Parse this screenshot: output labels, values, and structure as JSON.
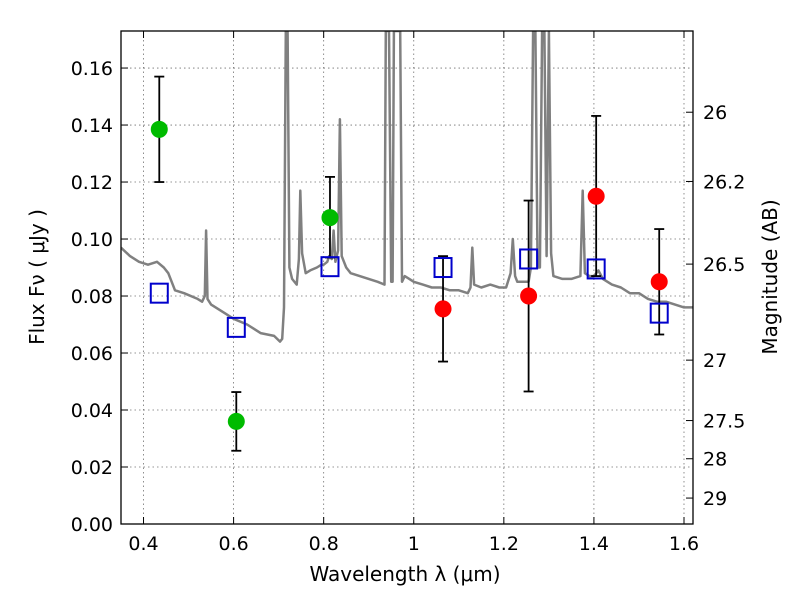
{
  "chart_data": {
    "type": "scatter",
    "xlabel": "Wavelength  λ (μm)",
    "ylabel": "Flux  Fν  ( μJy )",
    "ylabel_right": "Magnitude (AB)",
    "xlim": [
      0.35,
      1.62
    ],
    "ylim": [
      0.0,
      0.173
    ],
    "x_ticks": [
      0.4,
      0.6,
      0.8,
      1.0,
      1.2,
      1.4,
      1.6
    ],
    "x_tick_labels": [
      "0.4",
      "0.6",
      "0.8",
      "1",
      "1.2",
      "1.4",
      "1.6"
    ],
    "y_ticks": [
      0.0,
      0.02,
      0.04,
      0.06,
      0.08,
      0.1,
      0.12,
      0.14,
      0.16
    ],
    "y_tick_labels": [
      "0.00",
      "0.02",
      "0.04",
      "0.06",
      "0.08",
      "0.10",
      "0.12",
      "0.14",
      "0.16"
    ],
    "right_ticks": [
      {
        "label": "26",
        "flux": 0.1445
      },
      {
        "label": "26.2",
        "flux": 0.1202
      },
      {
        "label": "26.5",
        "flux": 0.0912
      },
      {
        "label": "27",
        "flux": 0.0575
      },
      {
        "label": "27.5",
        "flux": 0.0363
      },
      {
        "label": "28",
        "flux": 0.0229
      },
      {
        "label": "29",
        "flux": 0.0091
      }
    ],
    "grid": true,
    "series": [
      {
        "marker": "circle",
        "color": "#00bb00",
        "points": [
          {
            "x": 0.435,
            "y": 0.1385,
            "yerr_low": 0.12,
            "yerr_high": 0.157
          },
          {
            "x": 0.606,
            "y": 0.036,
            "yerr_low": 0.0257,
            "yerr_high": 0.0463
          },
          {
            "x": 0.814,
            "y": 0.1075,
            "yerr_low": 0.0935,
            "yerr_high": 0.1218
          }
        ]
      },
      {
        "marker": "circle",
        "color": "#ff0000",
        "points": [
          {
            "x": 1.065,
            "y": 0.0755,
            "yerr_low": 0.057,
            "yerr_high": 0.094
          },
          {
            "x": 1.255,
            "y": 0.08,
            "yerr_low": 0.0465,
            "yerr_high": 0.1135
          },
          {
            "x": 1.405,
            "y": 0.115,
            "yerr_low": 0.087,
            "yerr_high": 0.1432
          },
          {
            "x": 1.545,
            "y": 0.085,
            "yerr_low": 0.0665,
            "yerr_high": 0.1035
          }
        ]
      },
      {
        "marker": "square-open",
        "color": "#0000cc",
        "points": [
          {
            "x": 0.435,
            "y": 0.081
          },
          {
            "x": 0.606,
            "y": 0.069
          },
          {
            "x": 0.814,
            "y": 0.0903
          },
          {
            "x": 1.065,
            "y": 0.09
          },
          {
            "x": 1.255,
            "y": 0.093
          },
          {
            "x": 1.405,
            "y": 0.0895
          },
          {
            "x": 1.545,
            "y": 0.074
          }
        ]
      }
    ],
    "spectrum": {
      "color": "#808080",
      "points": [
        [
          0.35,
          0.097
        ],
        [
          0.37,
          0.094
        ],
        [
          0.39,
          0.092
        ],
        [
          0.41,
          0.091
        ],
        [
          0.43,
          0.092
        ],
        [
          0.445,
          0.09
        ],
        [
          0.455,
          0.088
        ],
        [
          0.47,
          0.082
        ],
        [
          0.49,
          0.081
        ],
        [
          0.52,
          0.079
        ],
        [
          0.53,
          0.078
        ],
        [
          0.536,
          0.08
        ],
        [
          0.539,
          0.103
        ],
        [
          0.542,
          0.079
        ],
        [
          0.55,
          0.077
        ],
        [
          0.58,
          0.074
        ],
        [
          0.6,
          0.072
        ],
        [
          0.63,
          0.07
        ],
        [
          0.66,
          0.067
        ],
        [
          0.69,
          0.066
        ],
        [
          0.703,
          0.064
        ],
        [
          0.708,
          0.065
        ],
        [
          0.712,
          0.076
        ],
        [
          0.716,
          0.173
        ],
        [
          0.72,
          0.173
        ],
        [
          0.724,
          0.09
        ],
        [
          0.73,
          0.086
        ],
        [
          0.74,
          0.084
        ],
        [
          0.745,
          0.093
        ],
        [
          0.748,
          0.117
        ],
        [
          0.752,
          0.095
        ],
        [
          0.76,
          0.088
        ],
        [
          0.77,
          0.089
        ],
        [
          0.785,
          0.09
        ],
        [
          0.795,
          0.091
        ],
        [
          0.8,
          0.091
        ],
        [
          0.808,
          0.092
        ],
        [
          0.812,
          0.094
        ],
        [
          0.818,
          0.093
        ],
        [
          0.822,
          0.103
        ],
        [
          0.826,
          0.092
        ],
        [
          0.832,
          0.096
        ],
        [
          0.836,
          0.142
        ],
        [
          0.84,
          0.094
        ],
        [
          0.85,
          0.09
        ],
        [
          0.86,
          0.088
        ],
        [
          0.88,
          0.087
        ],
        [
          0.9,
          0.086
        ],
        [
          0.92,
          0.085
        ],
        [
          0.935,
          0.084
        ],
        [
          0.938,
          0.173
        ],
        [
          0.945,
          0.173
        ],
        [
          0.95,
          0.085
        ],
        [
          0.953,
          0.085
        ],
        [
          0.956,
          0.173
        ],
        [
          0.962,
          0.173
        ],
        [
          0.966,
          0.173
        ],
        [
          0.97,
          0.173
        ],
        [
          0.974,
          0.085
        ],
        [
          0.98,
          0.087
        ],
        [
          0.99,
          0.086
        ],
        [
          1.0,
          0.085
        ],
        [
          1.02,
          0.084
        ],
        [
          1.04,
          0.083
        ],
        [
          1.06,
          0.083
        ],
        [
          1.08,
          0.082
        ],
        [
          1.1,
          0.082
        ],
        [
          1.12,
          0.081
        ],
        [
          1.126,
          0.083
        ],
        [
          1.13,
          0.097
        ],
        [
          1.134,
          0.084
        ],
        [
          1.15,
          0.083
        ],
        [
          1.17,
          0.084
        ],
        [
          1.19,
          0.083
        ],
        [
          1.205,
          0.083
        ],
        [
          1.215,
          0.088
        ],
        [
          1.22,
          0.1
        ],
        [
          1.225,
          0.087
        ],
        [
          1.23,
          0.085
        ],
        [
          1.24,
          0.085
        ],
        [
          1.255,
          0.085
        ],
        [
          1.26,
          0.09
        ],
        [
          1.265,
          0.173
        ],
        [
          1.27,
          0.173
        ],
        [
          1.275,
          0.09
        ],
        [
          1.28,
          0.09
        ],
        [
          1.285,
          0.173
        ],
        [
          1.29,
          0.173
        ],
        [
          1.295,
          0.094
        ],
        [
          1.3,
          0.173
        ],
        [
          1.305,
          0.095
        ],
        [
          1.31,
          0.087
        ],
        [
          1.33,
          0.086
        ],
        [
          1.35,
          0.086
        ],
        [
          1.37,
          0.087
        ],
        [
          1.375,
          0.117
        ],
        [
          1.38,
          0.088
        ],
        [
          1.39,
          0.087
        ],
        [
          1.4,
          0.087
        ],
        [
          1.41,
          0.089
        ],
        [
          1.42,
          0.086
        ],
        [
          1.44,
          0.084
        ],
        [
          1.46,
          0.083
        ],
        [
          1.48,
          0.081
        ],
        [
          1.5,
          0.081
        ],
        [
          1.52,
          0.079
        ],
        [
          1.54,
          0.078
        ],
        [
          1.56,
          0.078
        ],
        [
          1.58,
          0.077
        ],
        [
          1.6,
          0.076
        ],
        [
          1.62,
          0.076
        ]
      ]
    }
  }
}
